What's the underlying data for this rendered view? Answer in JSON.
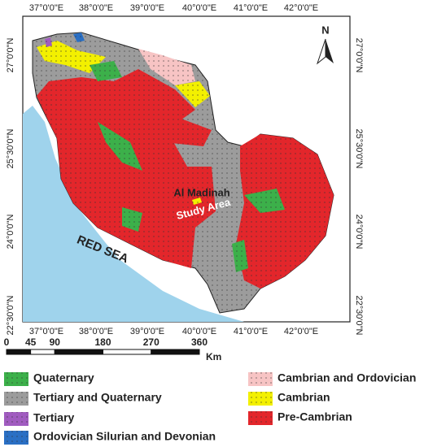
{
  "map": {
    "longitude_labels": [
      "37°0'0\"E",
      "38°0'0\"E",
      "39°0'0\"E",
      "40°0'0\"E",
      "41°0'0\"E",
      "42°0'0\"E"
    ],
    "latitude_labels": [
      "27°0'0\"N",
      "25°30'0\"N",
      "24°0'0\"N",
      "22°30'0\"N"
    ],
    "north": "N",
    "sea_label": "RED   SEA",
    "city_label": "Al Madinah",
    "study_area_label": "Study Area"
  },
  "scale_bar": {
    "ticks": [
      0,
      45,
      90,
      180,
      270,
      360
    ],
    "unit": "Km"
  },
  "legend": {
    "items": [
      {
        "label": "Quaternary",
        "color": "#3cb04a"
      },
      {
        "label": "Tertiary and Quaternary",
        "color": "#9c9c9c"
      },
      {
        "label": "Tertiary",
        "color": "#a15cc0"
      },
      {
        "label": "Ordovician Silurian and Devonian",
        "color": "#2a6fc4"
      },
      {
        "label": "Cambrian and Ordovician",
        "color": "#f7c4c4"
      },
      {
        "label": "Cambrian",
        "color": "#f3f000"
      },
      {
        "label": "Pre-Cambrian",
        "color": "#e3262b"
      }
    ]
  }
}
